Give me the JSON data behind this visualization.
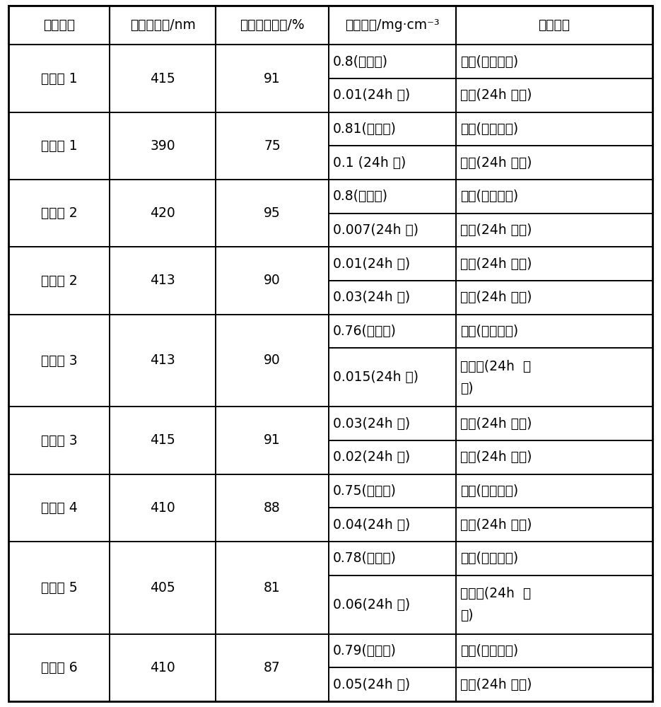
{
  "headers": [
    "检测项目",
    "吸光度波长/nm",
    "甲基橙降解率/%",
    "甲醛含量/mg·cm⁻³",
    "上光效果"
  ],
  "rows": [
    {
      "label": "实施例 1",
      "col2": "415",
      "col3": "91",
      "sub_rows": [
        [
          "0.8(初始值)",
          "蓝光(初始效果)"
        ],
        [
          "0.01(24h 值)",
          "光亮(24h 效果)"
        ]
      ],
      "tall": false
    },
    {
      "label": "对比例 1",
      "col2": "390",
      "col3": "75",
      "sub_rows": [
        [
          "0.81(初始值)",
          "蓝光(初始效果)"
        ],
        [
          "0.1 (24h 值)",
          "光亮(24h 效果)"
        ]
      ],
      "tall": false
    },
    {
      "label": "对比例 2",
      "col2": "420",
      "col3": "95",
      "sub_rows": [
        [
          "0.8(初始值)",
          "蓝光(初始效果)"
        ],
        [
          "0.007(24h 值)",
          "光亮(24h 效果)"
        ]
      ],
      "tall": false
    },
    {
      "label": "实施例 2",
      "col2": "413",
      "col3": "90",
      "sub_rows": [
        [
          "0.01(24h 值)",
          "光亮(24h 效果)"
        ],
        [
          "0.03(24h 值)",
          "光亮(24h 效果)"
        ]
      ],
      "tall": false
    },
    {
      "label": "对比例 3",
      "col2": "413",
      "col3": "90",
      "sub_rows": [
        [
          "0.76(初始值)",
          "蓝光(初始效果)"
        ],
        [
          "0.015(24h 值)",
          "很光亮(24h  效\n果)"
        ]
      ],
      "tall": true
    },
    {
      "label": "实施例 3",
      "col2": "415",
      "col3": "91",
      "sub_rows": [
        [
          "0.03(24h 值)",
          "光亮(24h 效果)"
        ],
        [
          "0.02(24h 值)",
          "光亮(24h 效果)"
        ]
      ],
      "tall": false
    },
    {
      "label": "实施例 4",
      "col2": "410",
      "col3": "88",
      "sub_rows": [
        [
          "0.75(初始值)",
          "蓝光(初始效果)"
        ],
        [
          "0.04(24h 值)",
          "光亮(24h 效果)"
        ]
      ],
      "tall": false
    },
    {
      "label": "实施例 5",
      "col2": "405",
      "col3": "81",
      "sub_rows": [
        [
          "0.78(初始值)",
          "蓝光(初始效果)"
        ],
        [
          "0.06(24h 值)",
          "很光亮(24h  效\n果)"
        ]
      ],
      "tall": true
    },
    {
      "label": "实施例 6",
      "col2": "410",
      "col3": "87",
      "sub_rows": [
        [
          "0.79(初始值)",
          "蓝光(初始效果)"
        ],
        [
          "0.05(24h 值)",
          "光亮(24h 效果)"
        ]
      ],
      "tall": false
    }
  ],
  "font_size": 13.5,
  "bg_color": "#ffffff",
  "line_color": "#000000",
  "text_color": "#000000",
  "fig_width": 9.35,
  "fig_height": 10.0,
  "dpi": 100
}
